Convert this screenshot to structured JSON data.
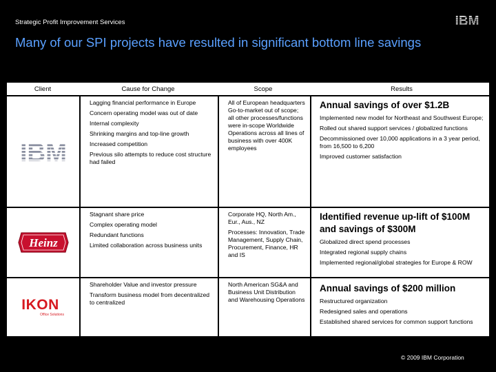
{
  "header": {
    "label": "Strategic Profit Improvement Services",
    "logo": "IBM"
  },
  "title": "Many of our SPI projects have resulted in significant bottom line savings",
  "columns": [
    "Client",
    "Cause for Change",
    "Scope",
    "Results"
  ],
  "rows": [
    {
      "client_logo": "IBM",
      "cause": [
        "Lagging financial performance in Europe",
        "Concern operating model was out of date",
        "Internal complexity",
        "Shrinking margins and top-line growth",
        "Increased competition",
        "Previous silo attempts to reduce cost structure had failed"
      ],
      "scope": [
        "All of European headquarters Go-to-market out of scope; all other processes/functions were in-scope Worldwide Operations across all lines of business with over 400K employees"
      ],
      "results_headline": "Annual savings of over $1.2B",
      "results": [
        "Implemented new model for Northeast and Southwest Europe;",
        "Rolled out shared support services / globalized functions",
        "Decommissioned over 10,000 applications in a 3 year period, from 16,500 to 6,200",
        "Improved customer satisfaction"
      ]
    },
    {
      "client_logo": "Heinz",
      "cause": [
        "Stagnant share price",
        "Complex operating model",
        "Redundant functions",
        "Limited collaboration across business units"
      ],
      "scope": [
        "Corporate HQ, North Am., Eur., Aus., NZ",
        "Processes: Innovation, Trade Management, Supply Chain, Procurement, Finance, HR and IS"
      ],
      "results_headline": "Identified revenue up-lift of $100M and savings of $300M",
      "results": [
        "Globalized direct spend processes",
        "Integrated regional supply chains",
        "Implemented regional/global strategies for Europe & ROW"
      ]
    },
    {
      "client_logo": "IKON",
      "client_logo_sub": "Office Solutions",
      "cause": [
        "Shareholder Value and investor pressure",
        "Transform business model from decentralized to centralized"
      ],
      "scope": [
        "North American SG&A and Business Unit Distribution and Warehousing Operations"
      ],
      "results_headline": "Annual savings of $200 million",
      "results": [
        "Restructured organization",
        "Redesigned sales and operations",
        "Established shared services for common support functions"
      ]
    }
  ],
  "footer": "© 2009 IBM Corporation",
  "colors": {
    "title": "#5aa0ff",
    "heinz_red": "#c8102e",
    "ikon_red": "#d71920"
  }
}
